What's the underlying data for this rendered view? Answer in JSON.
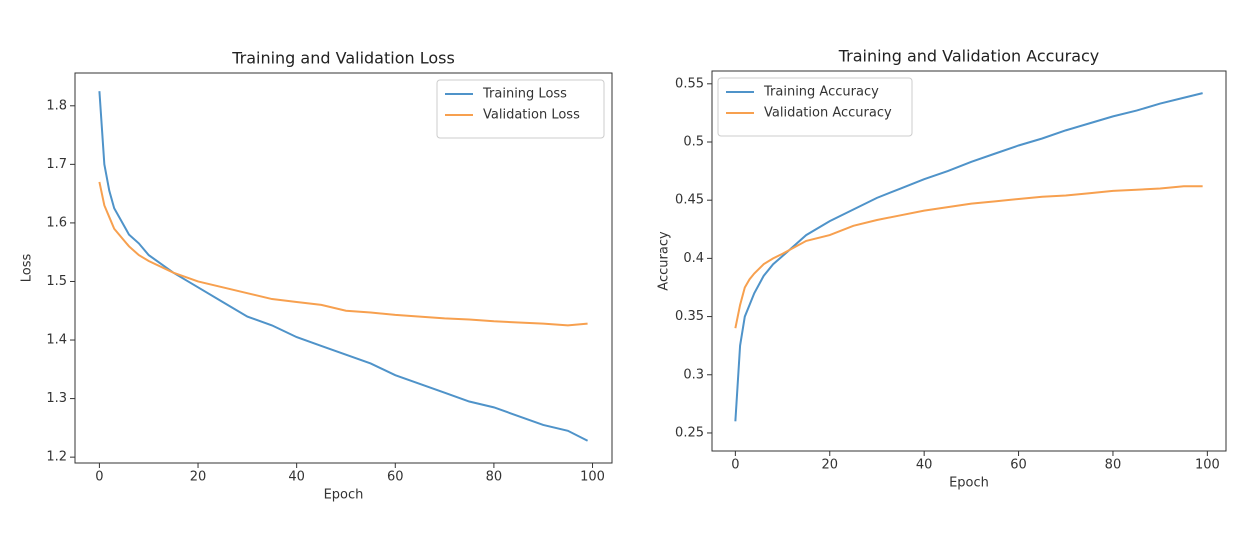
{
  "chart_data": [
    {
      "type": "line",
      "title": "Training and Validation Loss",
      "x_label": "Epoch",
      "y_label": "Loss",
      "x": [
        0,
        1,
        2,
        3,
        4,
        6,
        8,
        10,
        15,
        20,
        25,
        30,
        35,
        40,
        45,
        50,
        55,
        60,
        65,
        70,
        75,
        80,
        85,
        90,
        95,
        99
      ],
      "series": [
        {
          "name": "Training Loss",
          "color": "#4f93c9",
          "values": [
            1.825,
            1.7,
            1.655,
            1.625,
            1.61,
            1.58,
            1.565,
            1.545,
            1.515,
            1.49,
            1.465,
            1.44,
            1.425,
            1.405,
            1.39,
            1.375,
            1.36,
            1.34,
            1.325,
            1.31,
            1.295,
            1.285,
            1.27,
            1.255,
            1.245,
            1.228
          ]
        },
        {
          "name": "Validation Loss",
          "color": "#f7a04f",
          "values": [
            1.67,
            1.63,
            1.61,
            1.59,
            1.58,
            1.56,
            1.545,
            1.535,
            1.515,
            1.5,
            1.49,
            1.48,
            1.47,
            1.465,
            1.46,
            1.45,
            1.447,
            1.443,
            1.44,
            1.437,
            1.435,
            1.432,
            1.43,
            1.428,
            1.425,
            1.428
          ]
        }
      ],
      "xlim": [
        -4.95,
        103.95
      ],
      "xticks": [
        0,
        20,
        40,
        60,
        80,
        100
      ],
      "ylim": [
        1.19,
        1.856
      ],
      "yticks": [
        1.2,
        1.3,
        1.4,
        1.5,
        1.6,
        1.7,
        1.8
      ],
      "legend": "upper right"
    },
    {
      "type": "line",
      "title": "Training and Validation Accuracy",
      "x_label": "Epoch",
      "y_label": "Accuracy",
      "x": [
        0,
        1,
        2,
        3,
        4,
        6,
        8,
        10,
        15,
        20,
        25,
        30,
        35,
        40,
        45,
        50,
        55,
        60,
        65,
        70,
        75,
        80,
        85,
        90,
        95,
        99
      ],
      "series": [
        {
          "name": "Training Accuracy",
          "color": "#4f93c9",
          "values": [
            0.26,
            0.325,
            0.35,
            0.36,
            0.37,
            0.385,
            0.395,
            0.402,
            0.42,
            0.432,
            0.442,
            0.452,
            0.46,
            0.468,
            0.475,
            0.483,
            0.49,
            0.497,
            0.503,
            0.51,
            0.516,
            0.522,
            0.527,
            0.533,
            0.538,
            0.542
          ]
        },
        {
          "name": "Validation Accuracy",
          "color": "#f7a04f",
          "values": [
            0.34,
            0.36,
            0.375,
            0.382,
            0.387,
            0.395,
            0.4,
            0.404,
            0.415,
            0.42,
            0.428,
            0.433,
            0.437,
            0.441,
            0.444,
            0.447,
            0.449,
            0.451,
            0.453,
            0.454,
            0.456,
            0.458,
            0.459,
            0.46,
            0.462,
            0.462
          ]
        }
      ],
      "xlim": [
        -4.95,
        103.95
      ],
      "xticks": [
        0,
        20,
        40,
        60,
        80,
        100
      ],
      "ylim": [
        0.2345,
        0.561
      ],
      "yticks": [
        0.25,
        0.3,
        0.35,
        0.4,
        0.45,
        0.5,
        0.55
      ],
      "legend": "upper left"
    }
  ]
}
